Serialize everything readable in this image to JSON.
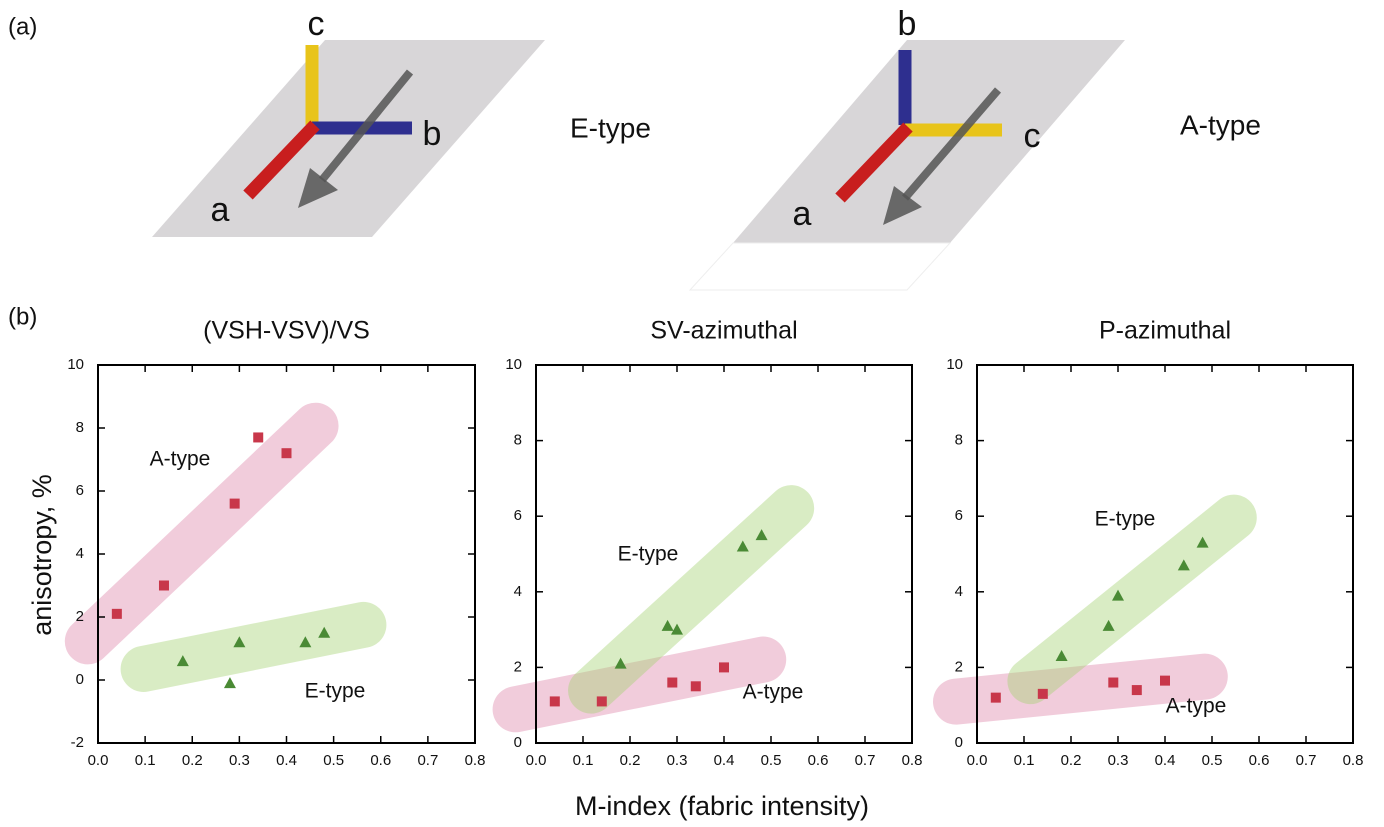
{
  "panel_labels": [
    "(a)",
    "(b)"
  ],
  "diagrams": [
    {
      "axis_labels": [
        "c",
        "b",
        "a"
      ],
      "label": "E-type"
    },
    {
      "axis_labels": [
        "b",
        "c",
        "a"
      ],
      "label": "A-type"
    }
  ],
  "x_axis_label": "M-index (fabric intensity)",
  "y_axis_label": "anisotropy, %",
  "chart_data": [
    {
      "type": "scatter",
      "title": "(VSH-VSV)/VS",
      "xlim": [
        0,
        0.8
      ],
      "xticks": [
        {
          "value": 0,
          "label": "0.0"
        },
        {
          "value": 0.1,
          "label": "0.1"
        },
        {
          "value": 0.2,
          "label": "0.2"
        },
        {
          "value": 0.3,
          "label": "0.3"
        },
        {
          "value": 0.4,
          "label": "0.4"
        },
        {
          "value": 0.5,
          "label": "0.5"
        },
        {
          "value": 0.6,
          "label": "0.6"
        },
        {
          "value": 0.7,
          "label": "0.7"
        },
        {
          "value": 0.8,
          "label": "0.8"
        }
      ],
      "ylim": [
        -2,
        10
      ],
      "yticks": [
        -2,
        0,
        2,
        4,
        6,
        8,
        10
      ],
      "series": [
        {
          "name": "A-type",
          "color": "#c8374a",
          "marker": "square",
          "x": [
            0.04,
            0.14,
            0.29,
            0.34,
            0.4
          ],
          "values": [
            2.1,
            3.0,
            5.6,
            7.7,
            7.2
          ]
        },
        {
          "name": "E-type",
          "color": "#4a8a35",
          "marker": "triangle",
          "x": [
            0.18,
            0.28,
            0.3,
            0.44,
            0.48
          ],
          "values": [
            0.6,
            -0.1,
            1.2,
            1.2,
            1.5
          ]
        }
      ]
    },
    {
      "type": "scatter",
      "title": "SV-azimuthal",
      "xlim": [
        0,
        0.8
      ],
      "xticks": [
        {
          "value": 0,
          "label": "0.0"
        },
        {
          "value": 0.1,
          "label": "0.1"
        },
        {
          "value": 0.2,
          "label": "0.2"
        },
        {
          "value": 0.3,
          "label": "0.3"
        },
        {
          "value": 0.4,
          "label": "0.4"
        },
        {
          "value": 0.5,
          "label": "0.5"
        },
        {
          "value": 0.6,
          "label": "0.6"
        },
        {
          "value": 0.7,
          "label": "0.7"
        },
        {
          "value": 0.8,
          "label": "0.8"
        }
      ],
      "ylim": [
        0,
        10
      ],
      "yticks": [
        0,
        2,
        4,
        6,
        8,
        10
      ],
      "series": [
        {
          "name": "A-type",
          "color": "#c8374a",
          "marker": "square",
          "x": [
            0.04,
            0.14,
            0.29,
            0.34,
            0.4
          ],
          "values": [
            1.1,
            1.1,
            1.6,
            1.5,
            2.0
          ]
        },
        {
          "name": "E-type",
          "color": "#4a8a35",
          "marker": "triangle",
          "x": [
            0.18,
            0.28,
            0.3,
            0.44,
            0.48
          ],
          "values": [
            2.1,
            3.1,
            3.0,
            5.2,
            5.5
          ]
        }
      ]
    },
    {
      "type": "scatter",
      "title": "P-azimuthal",
      "xlim": [
        0,
        0.8
      ],
      "xticks": [
        {
          "value": 0,
          "label": "0.0"
        },
        {
          "value": 0.1,
          "label": "0.1"
        },
        {
          "value": 0.2,
          "label": "0.2"
        },
        {
          "value": 0.3,
          "label": "0.3"
        },
        {
          "value": 0.4,
          "label": "0.4"
        },
        {
          "value": 0.5,
          "label": "0.5"
        },
        {
          "value": 0.6,
          "label": "0.6"
        },
        {
          "value": 0.7,
          "label": "0.7"
        },
        {
          "value": 0.8,
          "label": "0.8"
        }
      ],
      "ylim": [
        0,
        10
      ],
      "yticks": [
        0,
        2,
        4,
        6,
        8,
        10
      ],
      "series": [
        {
          "name": "A-type",
          "color": "#c8374a",
          "marker": "square",
          "x": [
            0.04,
            0.14,
            0.29,
            0.34,
            0.4
          ],
          "values": [
            1.2,
            1.3,
            1.6,
            1.4,
            1.65
          ]
        },
        {
          "name": "E-type",
          "color": "#4a8a35",
          "marker": "triangle",
          "x": [
            0.18,
            0.28,
            0.3,
            0.44,
            0.48
          ],
          "values": [
            2.3,
            3.1,
            3.9,
            4.7,
            5.3
          ]
        }
      ]
    }
  ]
}
